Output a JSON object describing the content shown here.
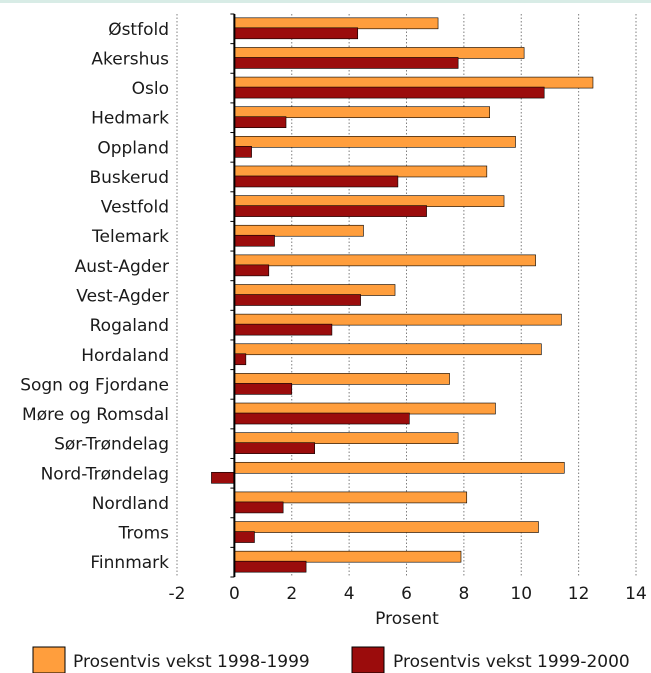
{
  "colors": {
    "accent_line": "#d8ece6",
    "series_1998_1999": "#ff9e3d",
    "series_1999_2000": "#9b0c0c",
    "grid": "#7f7f7f",
    "axis": "#000000"
  },
  "chart_data": {
    "type": "bar",
    "orientation": "horizontal",
    "categories": [
      "Østfold",
      "Akershus",
      "Oslo",
      "Hedmark",
      "Oppland",
      "Buskerud",
      "Vestfold",
      "Telemark",
      "Aust-Agder",
      "Vest-Agder",
      "Rogaland",
      "Hordaland",
      "Sogn og Fjordane",
      "Møre og Romsdal",
      "Sør-Trøndelag",
      "Nord-Trøndelag",
      "Nordland",
      "Troms",
      "Finnmark"
    ],
    "series": [
      {
        "name": "Prosentvis vekst 1998-1999",
        "color": "#ff9e3d",
        "values": [
          7.1,
          10.1,
          12.5,
          8.9,
          9.8,
          8.8,
          9.4,
          4.5,
          10.5,
          5.6,
          11.4,
          10.7,
          7.5,
          9.1,
          7.8,
          11.5,
          8.1,
          10.6,
          7.9
        ]
      },
      {
        "name": "Prosentvis vekst 1999-2000",
        "color": "#9b0c0c",
        "values": [
          4.3,
          7.8,
          10.8,
          1.8,
          0.6,
          5.7,
          6.7,
          1.4,
          1.2,
          4.4,
          3.4,
          0.4,
          2.0,
          6.1,
          2.8,
          -0.8,
          1.7,
          0.7,
          2.5
        ]
      }
    ],
    "xlabel": "Prosent",
    "ylabel": "",
    "xlim": [
      -2,
      14
    ],
    "xticks": [
      -2,
      0,
      2,
      4,
      6,
      8,
      10,
      12,
      14
    ],
    "xtick_labels": [
      "-2",
      "0",
      "2",
      "4",
      "6",
      "8",
      "10",
      "12",
      "14"
    ],
    "grid": true,
    "legend_placement": "bottom"
  }
}
